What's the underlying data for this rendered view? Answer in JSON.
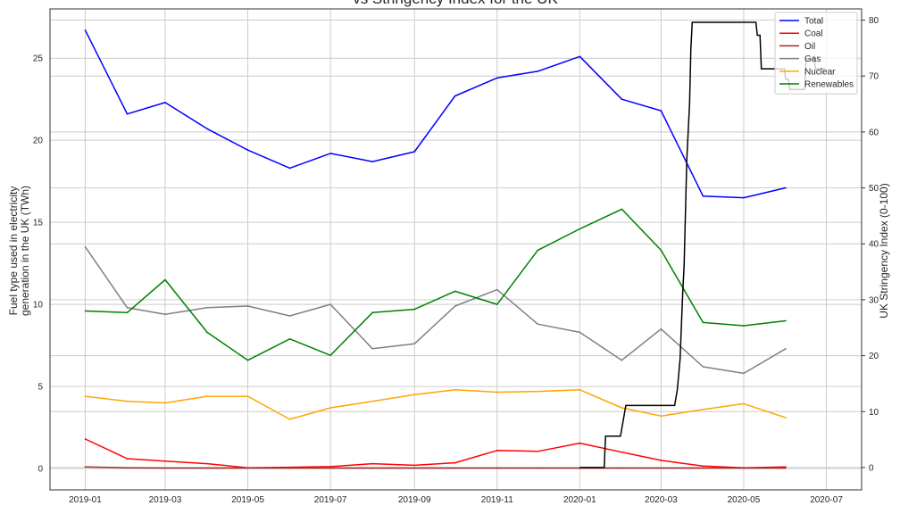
{
  "chart_data": {
    "type": "line",
    "title": "vs Stringency Index for the UK",
    "ylabel_left": [
      "Fuel type used in electricity",
      "generation in the UK (TWh)"
    ],
    "ylabel_right": "UK Stringency Index (0-100)",
    "xlabel": "",
    "x_ticks": [
      "2019-01",
      "2019-03",
      "2019-05",
      "2019-07",
      "2019-09",
      "2019-11",
      "2020-01",
      "2020-03",
      "2020-05",
      "2020-07"
    ],
    "y_left_ticks": [
      0,
      5,
      10,
      15,
      20,
      25
    ],
    "y_right_ticks": [
      0,
      10,
      20,
      30,
      40,
      50,
      60,
      70,
      80
    ],
    "ylim_left": [
      -1.3,
      28
    ],
    "ylim_right": [
      -4,
      82
    ],
    "xlim": [
      "2018-12-06",
      "2020-07-27"
    ],
    "grid": true,
    "legend_position": "top-right",
    "x": [
      "2019-01",
      "2019-02",
      "2019-03",
      "2019-04",
      "2019-05",
      "2019-06",
      "2019-07",
      "2019-08",
      "2019-09",
      "2019-10",
      "2019-11",
      "2019-12",
      "2020-01",
      "2020-02",
      "2020-03",
      "2020-04",
      "2020-05",
      "2020-06"
    ],
    "series": [
      {
        "name": "Total",
        "color": "#0000ff",
        "values": [
          26.7,
          21.6,
          22.3,
          20.7,
          19.4,
          18.3,
          19.2,
          18.7,
          19.3,
          22.7,
          23.8,
          24.2,
          25.1,
          22.5,
          21.8,
          16.6,
          16.5,
          17.1
        ]
      },
      {
        "name": "Coal",
        "color": "#ff0000",
        "values": [
          1.8,
          0.6,
          0.45,
          0.3,
          0.05,
          0.08,
          0.12,
          0.3,
          0.2,
          0.35,
          1.1,
          1.05,
          1.55,
          1.0,
          0.5,
          0.15,
          0.05,
          0.1
        ]
      },
      {
        "name": "Oil",
        "color": "#a52a2a",
        "values": [
          0.1,
          0.05,
          0.03,
          0.03,
          0.03,
          0.03,
          0.03,
          0.03,
          0.03,
          0.03,
          0.03,
          0.03,
          0.03,
          0.03,
          0.03,
          0.03,
          0.03,
          0.03
        ]
      },
      {
        "name": "Gas",
        "color": "#808080",
        "values": [
          13.5,
          9.8,
          9.4,
          9.8,
          9.9,
          9.3,
          10.0,
          7.3,
          7.6,
          9.9,
          10.9,
          8.8,
          8.3,
          6.6,
          8.5,
          6.2,
          5.8,
          7.3
        ]
      },
      {
        "name": "Nuclear",
        "color": "#ffa500",
        "values": [
          4.4,
          4.1,
          4.0,
          4.4,
          4.4,
          3.0,
          3.7,
          4.1,
          4.5,
          4.8,
          4.65,
          4.7,
          4.8,
          3.7,
          3.2,
          3.6,
          3.95,
          3.1
        ]
      },
      {
        "name": "Renewables",
        "color": "#008000",
        "values": [
          9.6,
          9.5,
          11.5,
          8.3,
          6.6,
          7.9,
          6.9,
          9.5,
          9.7,
          10.8,
          10.0,
          13.3,
          14.6,
          15.8,
          13.3,
          8.9,
          8.7,
          9.0
        ]
      }
    ],
    "stringency": {
      "color": "#000000",
      "points": [
        {
          "x": "2020-01-01",
          "y": 0
        },
        {
          "x": "2020-01-19",
          "y": 0
        },
        {
          "x": "2020-01-20",
          "y": 5.6
        },
        {
          "x": "2020-01-31",
          "y": 5.6
        },
        {
          "x": "2020-02-02",
          "y": 8.3
        },
        {
          "x": "2020-02-04",
          "y": 11.1
        },
        {
          "x": "2020-03-11",
          "y": 11.1
        },
        {
          "x": "2020-03-13",
          "y": 13.9
        },
        {
          "x": "2020-03-15",
          "y": 19.4
        },
        {
          "x": "2020-03-17",
          "y": 31.5
        },
        {
          "x": "2020-03-18",
          "y": 36.1
        },
        {
          "x": "2020-03-20",
          "y": 55.0
        },
        {
          "x": "2020-03-22",
          "y": 65.0
        },
        {
          "x": "2020-03-23",
          "y": 75.0
        },
        {
          "x": "2020-03-24",
          "y": 79.6
        },
        {
          "x": "2020-05-10",
          "y": 79.6
        },
        {
          "x": "2020-05-11",
          "y": 77.3
        },
        {
          "x": "2020-05-13",
          "y": 77.3
        },
        {
          "x": "2020-05-14",
          "y": 71.3
        },
        {
          "x": "2020-05-31",
          "y": 71.3
        },
        {
          "x": "2020-06-01",
          "y": 69.4
        },
        {
          "x": "2020-06-03",
          "y": 69.4
        },
        {
          "x": "2020-06-04",
          "y": 67.6
        },
        {
          "x": "2020-06-15",
          "y": 67.6
        },
        {
          "x": "2020-06-16",
          "y": 73.1
        },
        {
          "x": "2020-06-22",
          "y": 73.1
        },
        {
          "x": "2020-06-23",
          "y": 71.3
        },
        {
          "x": "2020-06-30",
          "y": 71.3
        }
      ]
    }
  }
}
